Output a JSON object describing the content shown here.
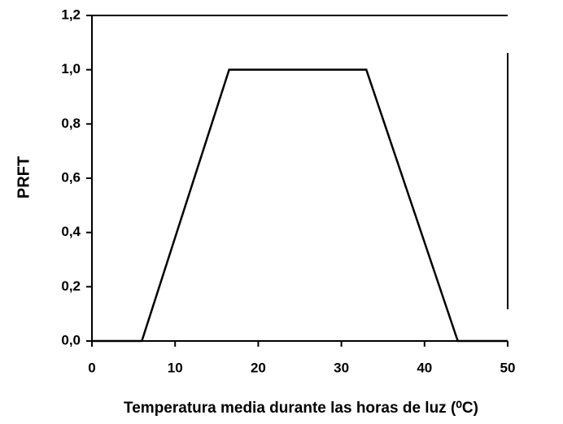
{
  "chart_data": {
    "type": "line",
    "ylabel": "PRFT",
    "xlabel": "Temperatura media durante las horas de luz (⁰C)",
    "x": [
      0,
      6,
      16.5,
      33,
      44,
      50
    ],
    "series": [
      {
        "color": "#000000",
        "values": [
          0,
          0,
          1,
          1,
          0,
          0
        ]
      }
    ],
    "xlim": [
      0,
      50
    ],
    "xticks": [
      0,
      10,
      20,
      30,
      40,
      50
    ],
    "ylim": [
      0,
      1.2
    ],
    "yticks": [
      {
        "value": 0,
        "label": "0,0"
      },
      {
        "value": 0.2,
        "label": "0,2"
      },
      {
        "value": 0.4,
        "label": "0,4"
      },
      {
        "value": 0.6,
        "label": "0,6"
      },
      {
        "value": 0.8,
        "label": "0,8"
      },
      {
        "value": 1.0,
        "label": "1,0"
      },
      {
        "value": 1.2,
        "label": "1,2"
      }
    ],
    "grid": false
  }
}
